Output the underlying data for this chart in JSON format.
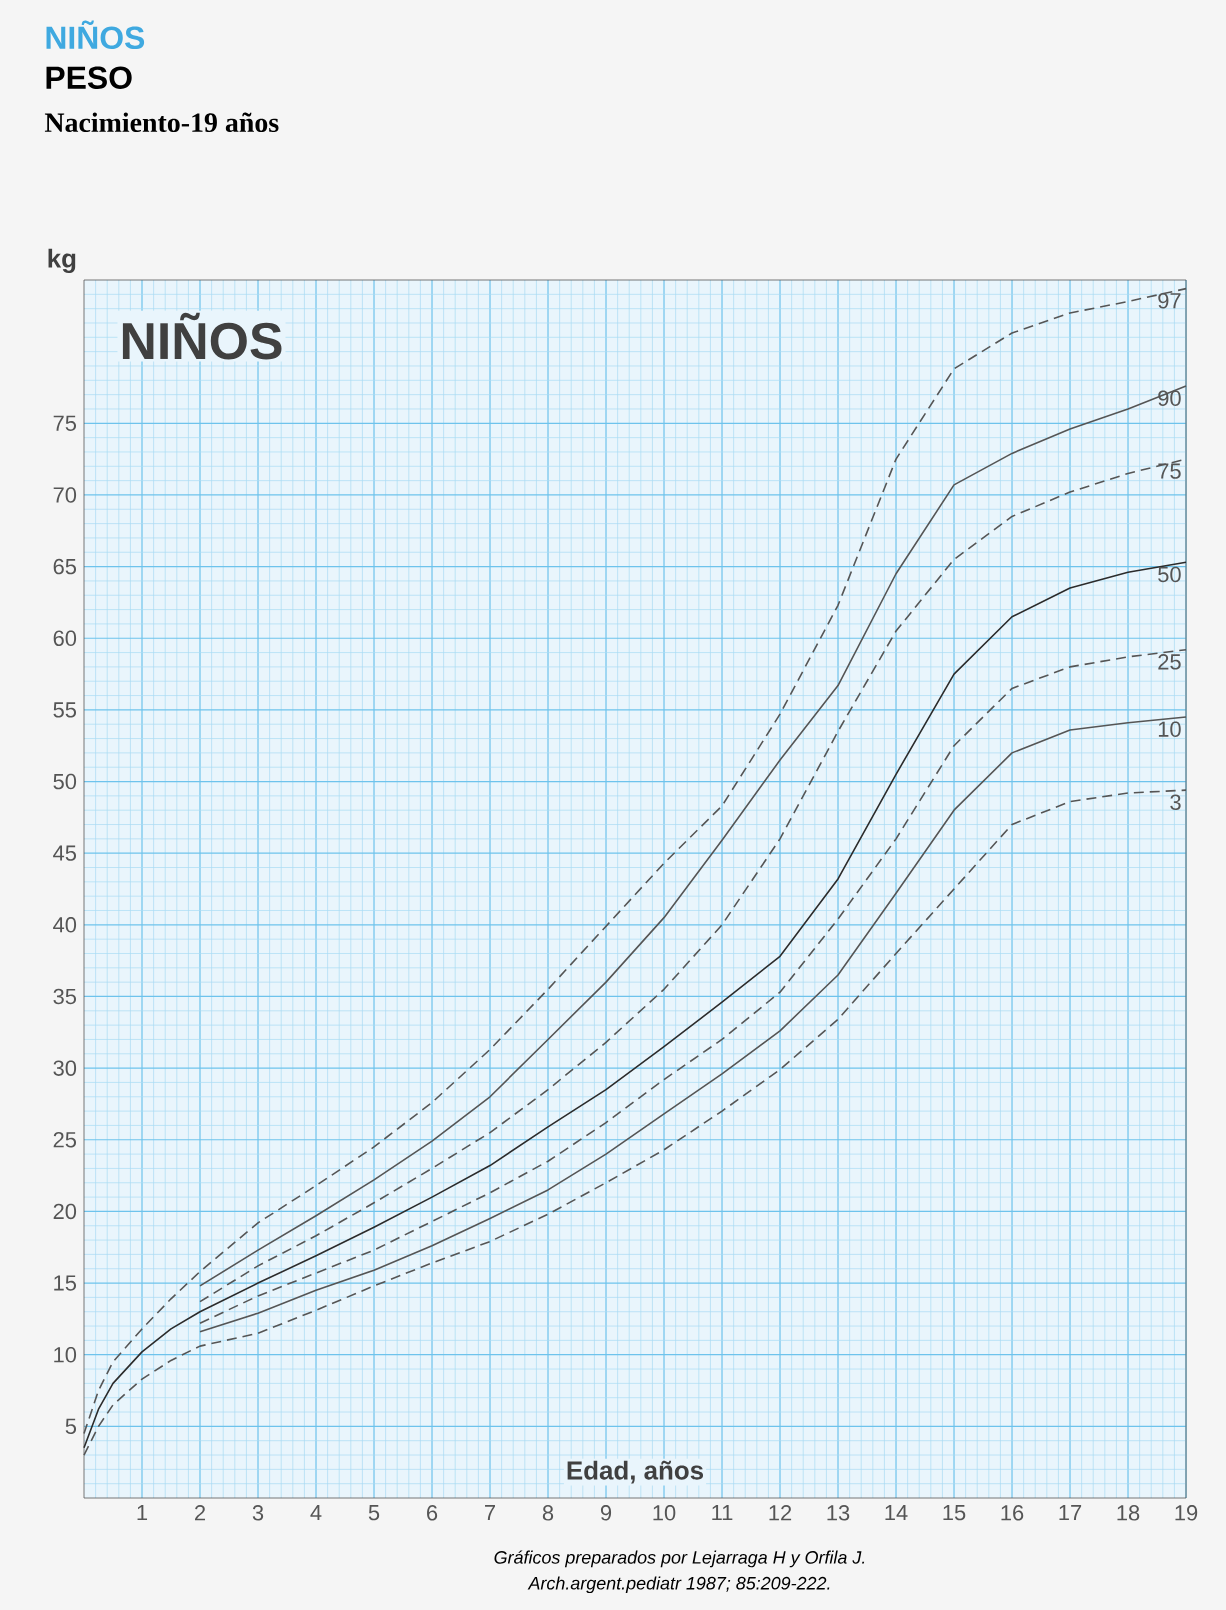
{
  "chart_data": {
    "type": "line",
    "title": "NIÑOS",
    "subtitle": "PESO",
    "xlabel": "Edad, años",
    "ylabel": "kg",
    "annotations": [
      "Nacimiento-19 años",
      "NIÑOS",
      "Gráficos preparados por Lejarraga H y Orfila J.",
      "Arch.argent.pediatr 1987; 85:209-222."
    ],
    "xlim": [
      0,
      19
    ],
    "ylim": [
      0,
      85
    ],
    "xticks": [
      {
        "value": 0.2,
        "label": null
      },
      {
        "value": 0.4,
        "label": null
      },
      {
        "value": 0.6,
        "label": null
      },
      {
        "value": 0.8,
        "label": null
      },
      1,
      {
        "value": 1.2,
        "label": null
      },
      {
        "value": 1.4,
        "label": null
      },
      {
        "value": 1.6,
        "label": null
      },
      {
        "value": 1.8,
        "label": null
      },
      2,
      {
        "value": 2.2,
        "label": null
      },
      {
        "value": 2.4,
        "label": null
      },
      {
        "value": 2.6,
        "label": null
      },
      {
        "value": 2.8,
        "label": null
      },
      3,
      {
        "value": 3.2,
        "label": null
      },
      {
        "value": 3.4,
        "label": null
      },
      {
        "value": 3.6,
        "label": null
      },
      {
        "value": 3.8,
        "label": null
      },
      4,
      {
        "value": 4.2,
        "label": null
      },
      {
        "value": 4.4,
        "label": null
      },
      {
        "value": 4.6,
        "label": null
      },
      {
        "value": 4.8,
        "label": null
      },
      5,
      {
        "value": 5.2,
        "label": null
      },
      {
        "value": 5.4,
        "label": null
      },
      {
        "value": 5.6,
        "label": null
      },
      {
        "value": 5.8,
        "label": null
      },
      6,
      {
        "value": 6.2,
        "label": null
      },
      {
        "value": 6.4,
        "label": null
      },
      {
        "value": 6.6,
        "label": null
      },
      {
        "value": 6.8,
        "label": null
      },
      7,
      {
        "value": 7.2,
        "label": null
      },
      {
        "value": 7.4,
        "label": null
      },
      {
        "value": 7.6,
        "label": null
      },
      {
        "value": 7.8,
        "label": null
      },
      8,
      {
        "value": 8.2,
        "label": null
      },
      {
        "value": 8.4,
        "label": null
      },
      {
        "value": 8.6,
        "label": null
      },
      {
        "value": 8.8,
        "label": null
      },
      9,
      {
        "value": 9.2,
        "label": null
      },
      {
        "value": 9.4,
        "label": null
      },
      {
        "value": 9.6,
        "label": null
      },
      {
        "value": 9.8,
        "label": null
      },
      10,
      {
        "value": 10.2,
        "label": null
      },
      {
        "value": 10.4,
        "label": null
      },
      {
        "value": 10.6,
        "label": null
      },
      {
        "value": 10.8,
        "label": null
      },
      11,
      {
        "value": 11.2,
        "label": null
      },
      {
        "value": 11.4,
        "label": null
      },
      {
        "value": 11.6,
        "label": null
      },
      {
        "value": 11.8,
        "label": null
      },
      12,
      {
        "value": 12.2,
        "label": null
      },
      {
        "value": 12.4,
        "label": null
      },
      {
        "value": 12.6,
        "label": null
      },
      {
        "value": 12.8,
        "label": null
      },
      13,
      {
        "value": 13.2,
        "label": null
      },
      {
        "value": 13.4,
        "label": null
      },
      {
        "value": 13.6,
        "label": null
      },
      {
        "value": 13.8,
        "label": null
      },
      14,
      {
        "value": 14.2,
        "label": null
      },
      {
        "value": 14.4,
        "label": null
      },
      {
        "value": 14.6,
        "label": null
      },
      {
        "value": 14.8,
        "label": null
      },
      15,
      {
        "value": 15.2,
        "label": null
      },
      {
        "value": 15.4,
        "label": null
      },
      {
        "value": 15.6,
        "label": null
      },
      {
        "value": 15.8,
        "label": null
      },
      16,
      {
        "value": 16.2,
        "label": null
      },
      {
        "value": 16.4,
        "label": null
      },
      {
        "value": 16.6,
        "label": null
      },
      {
        "value": 16.8,
        "label": null
      },
      17,
      {
        "value": 17.2,
        "label": null
      },
      {
        "value": 17.4,
        "label": null
      },
      {
        "value": 17.6,
        "label": null
      },
      {
        "value": 17.8,
        "label": null
      },
      18,
      {
        "value": 18.2,
        "label": null
      },
      {
        "value": 18.4,
        "label": null
      },
      {
        "value": 18.6,
        "label": null
      },
      {
        "value": 18.8,
        "label": null
      },
      19
    ],
    "yticks": [
      {
        "value": 1,
        "label": null
      },
      {
        "value": 2,
        "label": null
      },
      {
        "value": 3,
        "label": null
      },
      {
        "value": 4,
        "label": null
      },
      5,
      {
        "value": 6,
        "label": null
      },
      {
        "value": 7,
        "label": null
      },
      {
        "value": 8,
        "label": null
      },
      {
        "value": 9,
        "label": null
      },
      10,
      {
        "value": 11,
        "label": null
      },
      {
        "value": 12,
        "label": null
      },
      {
        "value": 13,
        "label": null
      },
      {
        "value": 14,
        "label": null
      },
      15,
      {
        "value": 16,
        "label": null
      },
      {
        "value": 17,
        "label": null
      },
      {
        "value": 18,
        "label": null
      },
      {
        "value": 19,
        "label": null
      },
      20,
      {
        "value": 21,
        "label": null
      },
      {
        "value": 22,
        "label": null
      },
      {
        "value": 23,
        "label": null
      },
      {
        "value": 24,
        "label": null
      },
      25,
      {
        "value": 26,
        "label": null
      },
      {
        "value": 27,
        "label": null
      },
      {
        "value": 28,
        "label": null
      },
      {
        "value": 29,
        "label": null
      },
      30,
      {
        "value": 31,
        "label": null
      },
      {
        "value": 32,
        "label": null
      },
      {
        "value": 33,
        "label": null
      },
      {
        "value": 34,
        "label": null
      },
      35,
      {
        "value": 36,
        "label": null
      },
      {
        "value": 37,
        "label": null
      },
      {
        "value": 38,
        "label": null
      },
      {
        "value": 39,
        "label": null
      },
      40,
      {
        "value": 41,
        "label": null
      },
      {
        "value": 42,
        "label": null
      },
      {
        "value": 43,
        "label": null
      },
      {
        "value": 44,
        "label": null
      },
      45,
      {
        "value": 46,
        "label": null
      },
      {
        "value": 47,
        "label": null
      },
      {
        "value": 48,
        "label": null
      },
      {
        "value": 49,
        "label": null
      },
      50,
      {
        "value": 51,
        "label": null
      },
      {
        "value": 52,
        "label": null
      },
      {
        "value": 53,
        "label": null
      },
      {
        "value": 54,
        "label": null
      },
      55,
      {
        "value": 56,
        "label": null
      },
      {
        "value": 57,
        "label": null
      },
      {
        "value": 58,
        "label": null
      },
      {
        "value": 59,
        "label": null
      },
      60,
      {
        "value": 61,
        "label": null
      },
      {
        "value": 62,
        "label": null
      },
      {
        "value": 63,
        "label": null
      },
      {
        "value": 64,
        "label": null
      },
      65,
      {
        "value": 66,
        "label": null
      },
      {
        "value": 67,
        "label": null
      },
      {
        "value": 68,
        "label": null
      },
      {
        "value": 69,
        "label": null
      },
      70,
      {
        "value": 71,
        "label": null
      },
      {
        "value": 72,
        "label": null
      },
      {
        "value": 73,
        "label": null
      },
      {
        "value": 74,
        "label": null
      },
      75,
      {
        "value": 76,
        "label": null
      },
      {
        "value": 77,
        "label": null
      },
      {
        "value": 78,
        "label": null
      },
      {
        "value": 79,
        "label": null
      },
      {
        "value": 80,
        "label": null
      },
      {
        "value": 81,
        "label": null
      },
      {
        "value": 82,
        "label": null
      },
      {
        "value": 83,
        "label": null
      },
      {
        "value": 84,
        "label": null
      }
    ],
    "grid": true,
    "marker": "none",
    "series": [
      {
        "name": "97",
        "color": "#555555",
        "line_style": "dashed",
        "x": [
          0,
          0.25,
          0.5,
          1,
          1.5,
          2,
          3,
          4,
          5,
          6,
          7,
          8,
          9,
          10,
          11,
          12,
          13,
          14,
          15,
          16,
          17,
          18,
          19
        ],
        "values": [
          4.5,
          7.5,
          9.5,
          11.8,
          13.9,
          15.8,
          19.2,
          21.8,
          24.5,
          27.6,
          31.3,
          35.5,
          39.9,
          44.3,
          48.3,
          54.7,
          62.3,
          72.5,
          78.8,
          81.3,
          82.7,
          83.5,
          84.4
        ]
      },
      {
        "name": "90",
        "color": "#555555",
        "line_style": "solid",
        "x": [
          2,
          3,
          4,
          5,
          6,
          7,
          8,
          9,
          10,
          11,
          12,
          13,
          14,
          15,
          16,
          17,
          18,
          19
        ],
        "values": [
          14.8,
          17.3,
          19.7,
          22.2,
          24.9,
          28.0,
          32.0,
          36.0,
          40.5,
          45.9,
          51.5,
          56.7,
          64.5,
          70.7,
          72.9,
          74.6,
          76.0,
          77.6
        ]
      },
      {
        "name": "75",
        "color": "#555555",
        "line_style": "dashed",
        "x": [
          2,
          3,
          4,
          5,
          6,
          7,
          8,
          9,
          10,
          11,
          12,
          13,
          14,
          15,
          16,
          17,
          18,
          19
        ],
        "values": [
          13.7,
          16.2,
          18.3,
          20.6,
          23.0,
          25.5,
          28.5,
          31.8,
          35.5,
          40.0,
          46.0,
          53.5,
          60.5,
          65.5,
          68.5,
          70.2,
          71.5,
          72.5
        ]
      },
      {
        "name": "50",
        "color": "#2b2b2b",
        "line_style": "solid",
        "x": [
          0,
          0.25,
          0.5,
          1,
          1.5,
          2,
          3,
          4,
          5,
          6,
          7,
          8,
          9,
          10,
          11,
          12,
          13,
          14,
          15,
          16,
          17,
          18,
          19
        ],
        "values": [
          3.5,
          6.2,
          8.0,
          10.2,
          11.8,
          13.0,
          15.0,
          16.9,
          18.9,
          21.0,
          23.2,
          25.9,
          28.5,
          31.5,
          34.6,
          37.8,
          43.2,
          50.5,
          57.5,
          61.5,
          63.5,
          64.6,
          65.3
        ]
      },
      {
        "name": "25",
        "color": "#555555",
        "line_style": "dashed",
        "x": [
          2,
          3,
          4,
          5,
          6,
          7,
          8,
          9,
          10,
          11,
          12,
          13,
          14,
          15,
          16,
          17,
          18,
          19
        ],
        "values": [
          12.2,
          14.1,
          15.7,
          17.3,
          19.3,
          21.3,
          23.5,
          26.2,
          29.2,
          32.0,
          35.3,
          40.4,
          46.0,
          52.5,
          56.5,
          58.0,
          58.7,
          59.2
        ]
      },
      {
        "name": "10",
        "color": "#555555",
        "line_style": "solid",
        "x": [
          2,
          3,
          4,
          5,
          6,
          7,
          8,
          9,
          10,
          11,
          12,
          13,
          14,
          15,
          16,
          17,
          18,
          19
        ],
        "values": [
          11.6,
          12.9,
          14.5,
          15.9,
          17.6,
          19.5,
          21.5,
          24.0,
          26.8,
          29.6,
          32.6,
          36.5,
          42.2,
          48.0,
          52.0,
          53.6,
          54.1,
          54.5
        ]
      },
      {
        "name": "3",
        "color": "#555555",
        "line_style": "dashed",
        "x": [
          0,
          0.25,
          0.5,
          1,
          1.5,
          2,
          3,
          4,
          5,
          6,
          7,
          8,
          9,
          10,
          11,
          12,
          13,
          14,
          15,
          16,
          17,
          18,
          19
        ],
        "values": [
          3.0,
          5.0,
          6.5,
          8.3,
          9.6,
          10.6,
          11.5,
          13.1,
          14.8,
          16.4,
          17.9,
          19.8,
          22.0,
          24.3,
          27.0,
          29.9,
          33.4,
          38.0,
          42.5,
          47.0,
          48.6,
          49.2,
          49.4
        ]
      }
    ]
  }
}
